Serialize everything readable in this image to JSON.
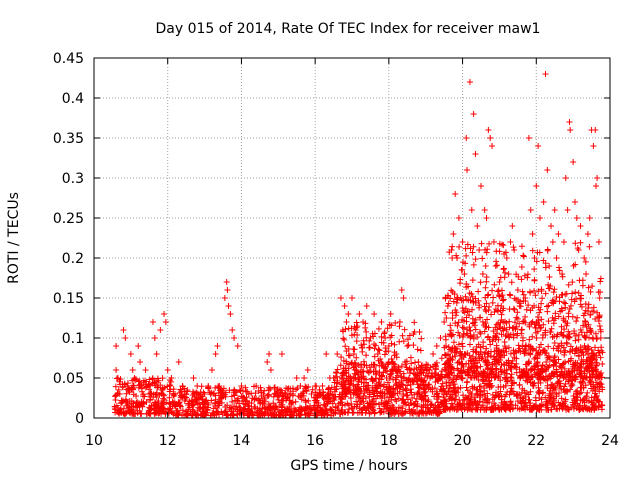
{
  "chart_data": {
    "type": "scatter",
    "title": "Day 015 of 2014, Rate Of TEC Index for receiver maw1",
    "xlabel": "GPS time / hours",
    "ylabel": "ROTI / TECUs",
    "xlim": [
      10,
      24
    ],
    "ylim": [
      0,
      0.45
    ],
    "xticks": [
      10,
      12,
      14,
      16,
      18,
      20,
      22,
      24
    ],
    "xtick_labels": [
      "10",
      "12",
      "14",
      "16",
      "18",
      "20",
      "22",
      "24"
    ],
    "yticks": [
      0,
      0.05,
      0.1,
      0.15,
      0.2,
      0.25,
      0.3,
      0.35,
      0.4,
      0.45
    ],
    "ytick_labels": [
      "0",
      "0.05",
      "0.1",
      "0.15",
      "0.2",
      "0.25",
      "0.3",
      "0.35",
      "0.4",
      "0.45"
    ],
    "grid": true,
    "marker": "+",
    "color": "#ff0000",
    "series": [
      {
        "name": "ROTI",
        "points": [
          [
            10.6,
            0.09
          ],
          [
            10.6,
            0.06
          ],
          [
            10.65,
            0.05
          ],
          [
            10.7,
            0.03
          ],
          [
            10.75,
            0.02
          ],
          [
            10.8,
            0.11
          ],
          [
            10.85,
            0.1
          ],
          [
            10.9,
            0.04
          ],
          [
            11.0,
            0.08
          ],
          [
            11.05,
            0.06
          ],
          [
            11.1,
            0.05
          ],
          [
            11.2,
            0.09
          ],
          [
            11.25,
            0.07
          ],
          [
            11.3,
            0.04
          ],
          [
            11.4,
            0.06
          ],
          [
            11.5,
            0.03
          ],
          [
            11.6,
            0.12
          ],
          [
            11.65,
            0.1
          ],
          [
            11.7,
            0.08
          ],
          [
            11.8,
            0.11
          ],
          [
            11.9,
            0.13
          ],
          [
            11.95,
            0.12
          ],
          [
            12.0,
            0.06
          ],
          [
            12.05,
            0.04
          ],
          [
            12.1,
            0.05
          ],
          [
            12.2,
            0.03
          ],
          [
            12.3,
            0.07
          ],
          [
            12.4,
            0.04
          ],
          [
            12.5,
            0.03
          ],
          [
            12.7,
            0.05
          ],
          [
            12.8,
            0.04
          ],
          [
            12.9,
            0.03
          ],
          [
            13.0,
            0.03
          ],
          [
            13.1,
            0.04
          ],
          [
            13.2,
            0.06
          ],
          [
            13.3,
            0.08
          ],
          [
            13.35,
            0.09
          ],
          [
            13.4,
            0.04
          ],
          [
            13.5,
            0.03
          ],
          [
            13.55,
            0.15
          ],
          [
            13.6,
            0.17
          ],
          [
            13.62,
            0.16
          ],
          [
            13.65,
            0.14
          ],
          [
            13.7,
            0.13
          ],
          [
            13.75,
            0.11
          ],
          [
            13.8,
            0.1
          ],
          [
            13.9,
            0.09
          ],
          [
            14.0,
            0.04
          ],
          [
            14.2,
            0.03
          ],
          [
            14.4,
            0.04
          ],
          [
            14.6,
            0.03
          ],
          [
            14.7,
            0.07
          ],
          [
            14.75,
            0.08
          ],
          [
            14.8,
            0.06
          ],
          [
            14.9,
            0.03
          ],
          [
            15.0,
            0.03
          ],
          [
            15.1,
            0.08
          ],
          [
            15.2,
            0.03
          ],
          [
            15.4,
            0.03
          ],
          [
            15.5,
            0.05
          ],
          [
            15.6,
            0.04
          ],
          [
            15.7,
            0.05
          ],
          [
            15.8,
            0.06
          ],
          [
            15.9,
            0.03
          ],
          [
            16.0,
            0.04
          ],
          [
            16.2,
            0.04
          ],
          [
            16.3,
            0.08
          ],
          [
            16.4,
            0.05
          ],
          [
            16.5,
            0.05
          ],
          [
            16.6,
            0.08
          ],
          [
            16.7,
            0.15
          ],
          [
            16.75,
            0.11
          ],
          [
            16.8,
            0.14
          ],
          [
            16.85,
            0.12
          ],
          [
            16.9,
            0.13
          ],
          [
            17.0,
            0.15
          ],
          [
            17.05,
            0.08
          ],
          [
            17.1,
            0.11
          ],
          [
            17.2,
            0.13
          ],
          [
            17.3,
            0.12
          ],
          [
            17.4,
            0.14
          ],
          [
            17.5,
            0.1
          ],
          [
            17.6,
            0.13
          ],
          [
            17.7,
            0.08
          ],
          [
            17.8,
            0.12
          ],
          [
            17.9,
            0.1
          ],
          [
            18.0,
            0.09
          ],
          [
            18.05,
            0.13
          ],
          [
            18.1,
            0.07
          ],
          [
            18.2,
            0.08
          ],
          [
            18.3,
            0.12
          ],
          [
            18.35,
            0.16
          ],
          [
            18.4,
            0.15
          ],
          [
            18.5,
            0.09
          ],
          [
            18.6,
            0.06
          ],
          [
            18.7,
            0.05
          ],
          [
            18.8,
            0.07
          ],
          [
            18.9,
            0.06
          ],
          [
            19.0,
            0.04
          ],
          [
            19.1,
            0.06
          ],
          [
            19.2,
            0.08
          ],
          [
            19.3,
            0.09
          ],
          [
            19.4,
            0.1
          ],
          [
            19.5,
            0.12
          ],
          [
            19.6,
            0.14
          ],
          [
            19.7,
            0.21
          ],
          [
            19.75,
            0.23
          ],
          [
            19.8,
            0.28
          ],
          [
            19.85,
            0.2
          ],
          [
            19.9,
            0.25
          ],
          [
            19.95,
            0.15
          ],
          [
            20.0,
            0.22
          ],
          [
            20.05,
            0.18
          ],
          [
            20.1,
            0.35
          ],
          [
            20.12,
            0.31
          ],
          [
            20.2,
            0.42
          ],
          [
            20.25,
            0.26
          ],
          [
            20.3,
            0.38
          ],
          [
            20.35,
            0.33
          ],
          [
            20.4,
            0.24
          ],
          [
            20.45,
            0.21
          ],
          [
            20.5,
            0.29
          ],
          [
            20.55,
            0.18
          ],
          [
            20.6,
            0.26
          ],
          [
            20.65,
            0.25
          ],
          [
            20.7,
            0.36
          ],
          [
            20.75,
            0.35
          ],
          [
            20.8,
            0.34
          ],
          [
            20.85,
            0.22
          ],
          [
            20.9,
            0.19
          ],
          [
            21.0,
            0.17
          ],
          [
            21.05,
            0.14
          ],
          [
            21.1,
            0.12
          ],
          [
            21.2,
            0.2
          ],
          [
            21.25,
            0.18
          ],
          [
            21.3,
            0.22
          ],
          [
            21.35,
            0.24
          ],
          [
            21.4,
            0.21
          ],
          [
            21.5,
            0.16
          ],
          [
            21.55,
            0.14
          ],
          [
            21.6,
            0.11
          ],
          [
            21.7,
            0.15
          ],
          [
            21.8,
            0.35
          ],
          [
            21.85,
            0.26
          ],
          [
            21.9,
            0.23
          ],
          [
            21.95,
            0.2
          ],
          [
            22.0,
            0.29
          ],
          [
            22.05,
            0.34
          ],
          [
            22.1,
            0.25
          ],
          [
            22.2,
            0.27
          ],
          [
            22.25,
            0.43
          ],
          [
            22.3,
            0.31
          ],
          [
            22.35,
            0.19
          ],
          [
            22.4,
            0.24
          ],
          [
            22.45,
            0.22
          ],
          [
            22.5,
            0.26
          ],
          [
            22.55,
            0.2
          ],
          [
            22.6,
            0.23
          ],
          [
            22.7,
            0.18
          ],
          [
            22.75,
            0.22
          ],
          [
            22.8,
            0.3
          ],
          [
            22.85,
            0.26
          ],
          [
            22.9,
            0.37
          ],
          [
            22.92,
            0.36
          ],
          [
            23.0,
            0.32
          ],
          [
            23.05,
            0.27
          ],
          [
            23.1,
            0.25
          ],
          [
            23.15,
            0.21
          ],
          [
            23.2,
            0.24
          ],
          [
            23.3,
            0.2
          ],
          [
            23.35,
            0.18
          ],
          [
            23.4,
            0.23
          ],
          [
            23.45,
            0.25
          ],
          [
            23.5,
            0.36
          ],
          [
            23.55,
            0.34
          ],
          [
            23.6,
            0.36
          ],
          [
            23.62,
            0.29
          ],
          [
            23.65,
            0.3
          ],
          [
            23.7,
            0.22
          ],
          [
            23.72,
            0.15
          ],
          [
            23.75,
            0.1
          ]
        ],
        "noise_bands": [
          {
            "from": 10.55,
            "to": 12.2,
            "lo": 0.005,
            "hi": 0.05,
            "count": 260
          },
          {
            "from": 12.2,
            "to": 16.5,
            "lo": 0.003,
            "hi": 0.04,
            "count": 620
          },
          {
            "from": 16.5,
            "to": 19.4,
            "lo": 0.005,
            "hi": 0.07,
            "count": 520
          },
          {
            "from": 16.7,
            "to": 19.0,
            "lo": 0.03,
            "hi": 0.12,
            "count": 220
          },
          {
            "from": 19.4,
            "to": 23.8,
            "lo": 0.01,
            "hi": 0.09,
            "count": 900
          },
          {
            "from": 19.5,
            "to": 23.8,
            "lo": 0.05,
            "hi": 0.16,
            "count": 520
          },
          {
            "from": 19.6,
            "to": 23.8,
            "lo": 0.1,
            "hi": 0.22,
            "count": 260
          }
        ]
      }
    ]
  }
}
